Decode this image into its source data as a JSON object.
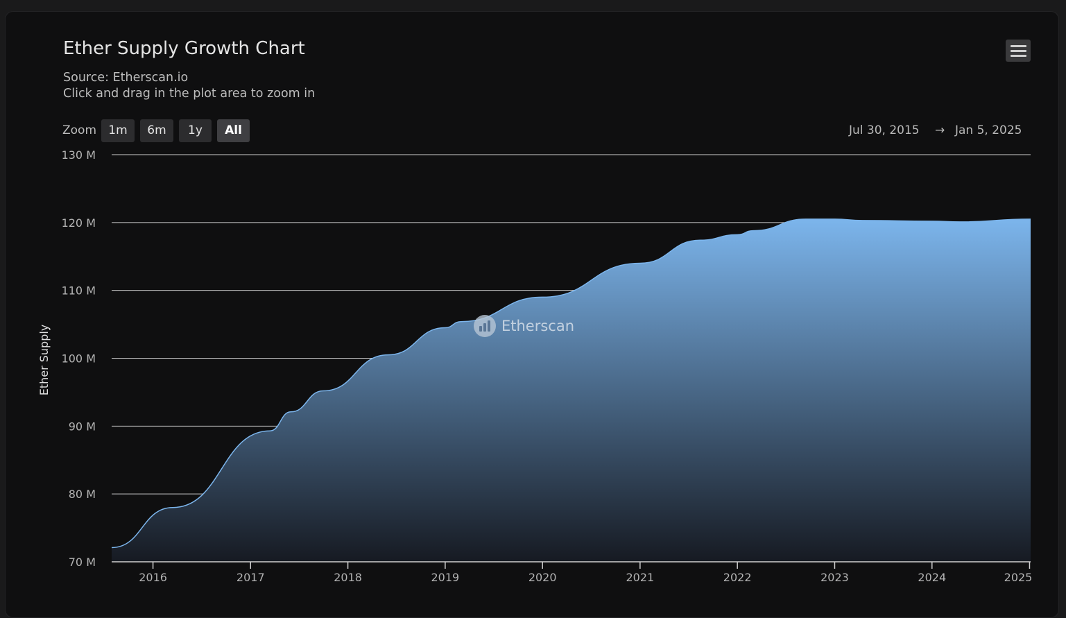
{
  "chart": {
    "title": "Ether Supply Growth Chart",
    "subtitle_source": "Source: Etherscan.io",
    "subtitle_hint": "Click and drag in the plot area to zoom in",
    "menu_icon": "hamburger-menu-icon",
    "watermark": "Etherscan"
  },
  "zoom": {
    "label": "Zoom",
    "buttons": [
      {
        "label": "1m",
        "active": false
      },
      {
        "label": "6m",
        "active": false
      },
      {
        "label": "1y",
        "active": false
      },
      {
        "label": "All",
        "active": true
      }
    ]
  },
  "range": {
    "from": "Jul 30, 2015",
    "arrow": "→",
    "to": "Jan 5, 2025"
  },
  "colors": {
    "line": "#7cb5ec",
    "fill_top": "#7cb5ec",
    "fill_bottom": "#161a22",
    "grid": "#cccccc",
    "background": "#0f0f10"
  },
  "chart_data": {
    "type": "area",
    "ylabel": "Ether Supply",
    "xlabel": "",
    "y_unit": "M",
    "ylim": [
      70,
      130
    ],
    "yticks": [
      70,
      80,
      90,
      100,
      110,
      120,
      130
    ],
    "ytick_labels": [
      "70 M",
      "80 M",
      "90 M",
      "100 M",
      "110 M",
      "120 M",
      "130 M"
    ],
    "xlim": [
      "2015-07-30",
      "2025-01-05"
    ],
    "xtick_labels": [
      "2016",
      "2017",
      "2018",
      "2019",
      "2020",
      "2021",
      "2022",
      "2023",
      "2024",
      "2025"
    ],
    "grid": true,
    "series": [
      {
        "x": [
          "2015-07-30",
          "2016-03-15",
          "2017-03-15",
          "2017-06-01",
          "2017-10-01",
          "2018-06-01",
          "2019-01-01",
          "2019-03-01",
          "2020-01-01",
          "2021-01-01",
          "2021-08-15",
          "2022-01-01",
          "2022-03-01",
          "2022-09-15",
          "2023-01-01",
          "2023-04-15",
          "2024-01-01",
          "2024-04-15",
          "2025-01-05"
        ],
        "y": [
          72.1,
          78.0,
          89.3,
          92.1,
          95.2,
          100.5,
          104.5,
          105.4,
          109.0,
          114.0,
          117.4,
          118.2,
          118.8,
          120.5,
          120.5,
          120.3,
          120.2,
          120.1,
          120.5
        ]
      }
    ]
  }
}
